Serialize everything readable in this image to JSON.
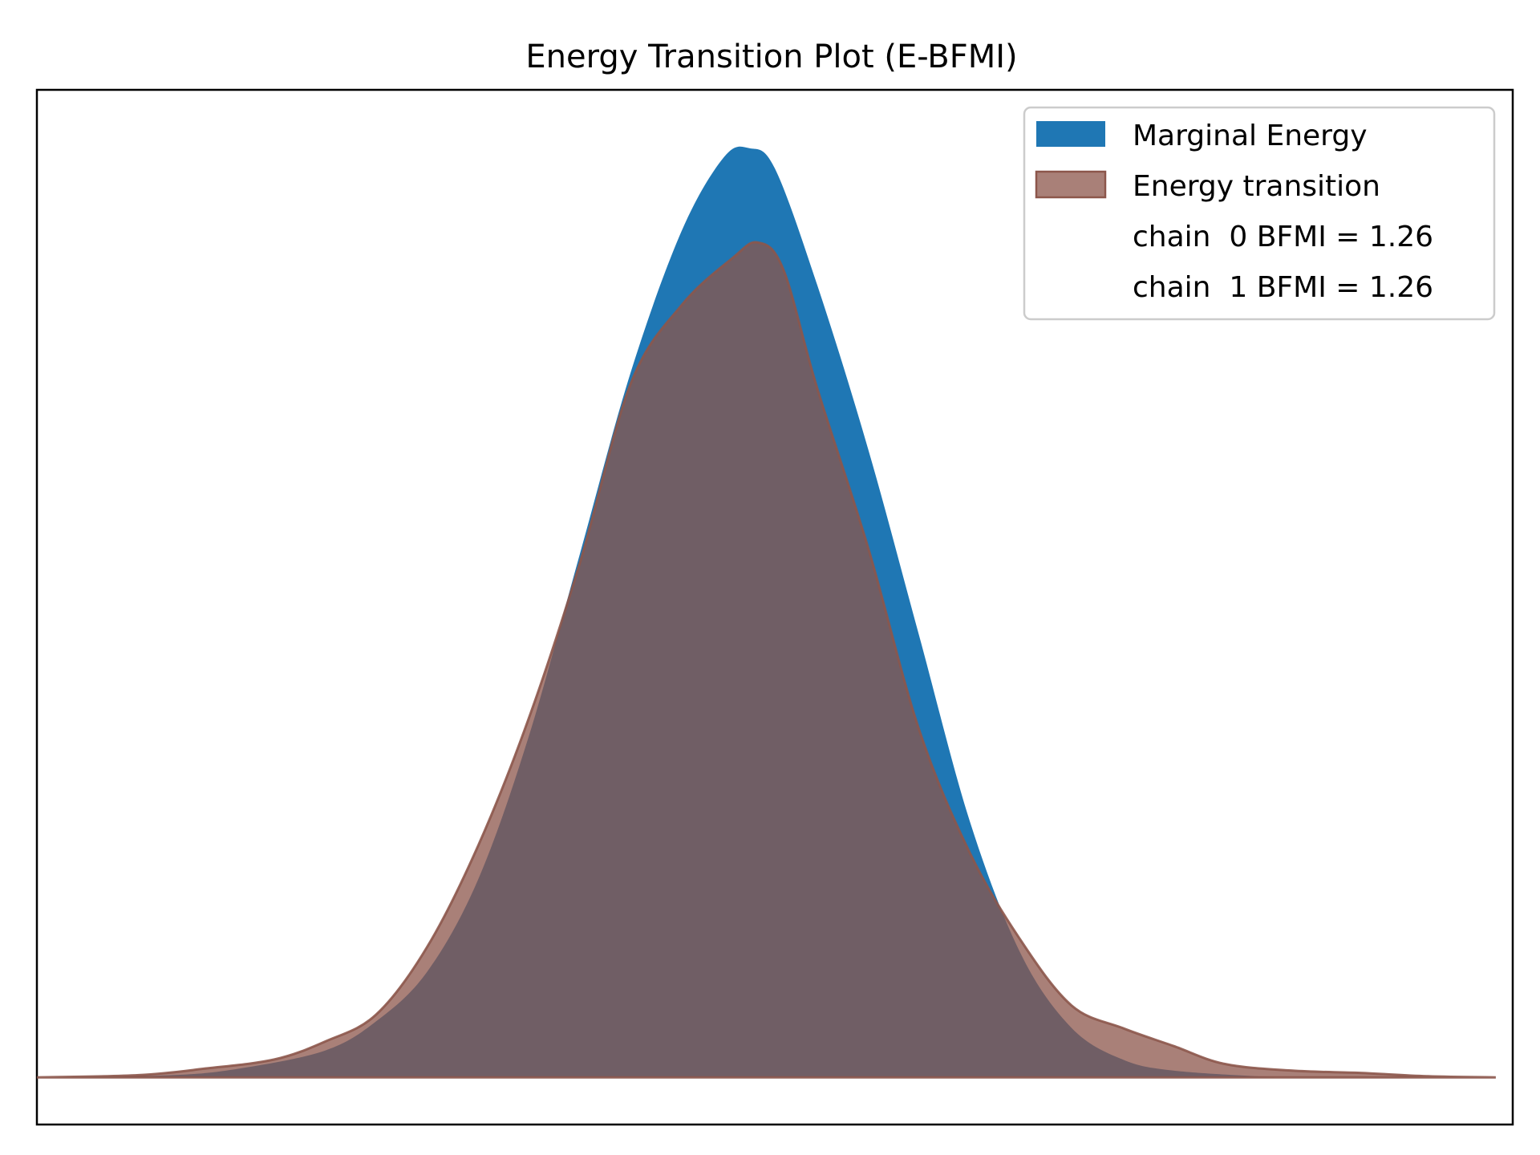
{
  "chart_data": {
    "type": "area",
    "title": "Energy Transition Plot (E-BFMI)",
    "xlabel": "",
    "ylabel": "",
    "x_ticks_shown": false,
    "y_ticks_shown": false,
    "grid": false,
    "legend_position": "top-right",
    "xlim": [
      -4.2,
      4.5
    ],
    "ylim": [
      -0.021,
      0.44
    ],
    "series": [
      {
        "name": "Marginal Energy",
        "color": "#1f77b4",
        "alpha": 1.0,
        "x": [
          -4.1,
          -3.4,
          -3.0,
          -2.5,
          -2.2,
          -1.9,
          -1.6,
          -1.3,
          -1.0,
          -0.7,
          -0.4,
          -0.15,
          0.0,
          0.15,
          0.4,
          0.7,
          1.0,
          1.3,
          1.6,
          1.9,
          2.2,
          2.5,
          3.1
        ],
        "y": [
          0.0,
          0.001,
          0.004,
          0.012,
          0.025,
          0.047,
          0.088,
          0.152,
          0.233,
          0.314,
          0.377,
          0.41,
          0.414,
          0.405,
          0.353,
          0.28,
          0.197,
          0.114,
          0.055,
          0.022,
          0.008,
          0.003,
          0.0
        ]
      },
      {
        "name": "Energy transition",
        "color": "#8c564b",
        "alpha": 0.75,
        "x": [
          -4.2,
          -3.6,
          -3.2,
          -2.8,
          -2.5,
          -2.2,
          -1.9,
          -1.6,
          -1.3,
          -1.0,
          -0.7,
          -0.4,
          -0.1,
          0.05,
          0.2,
          0.4,
          0.7,
          1.0,
          1.3,
          1.6,
          1.9,
          2.2,
          2.5,
          2.8,
          3.2,
          3.6,
          4.0,
          4.4
        ],
        "y": [
          0.0,
          0.001,
          0.004,
          0.008,
          0.016,
          0.028,
          0.058,
          0.103,
          0.16,
          0.229,
          0.309,
          0.344,
          0.365,
          0.372,
          0.36,
          0.307,
          0.236,
          0.155,
          0.1,
          0.061,
          0.032,
          0.022,
          0.014,
          0.006,
          0.003,
          0.002,
          0.0005,
          0.0
        ]
      }
    ],
    "legend": [
      {
        "label": "Marginal Energy",
        "swatch": "#1f77b4"
      },
      {
        "label": "Energy transition",
        "swatch": "#8c564b"
      },
      {
        "label": "chain  0 BFMI = 1.26",
        "swatch": ""
      },
      {
        "label": "chain  1 BFMI = 1.26",
        "swatch": ""
      }
    ]
  }
}
